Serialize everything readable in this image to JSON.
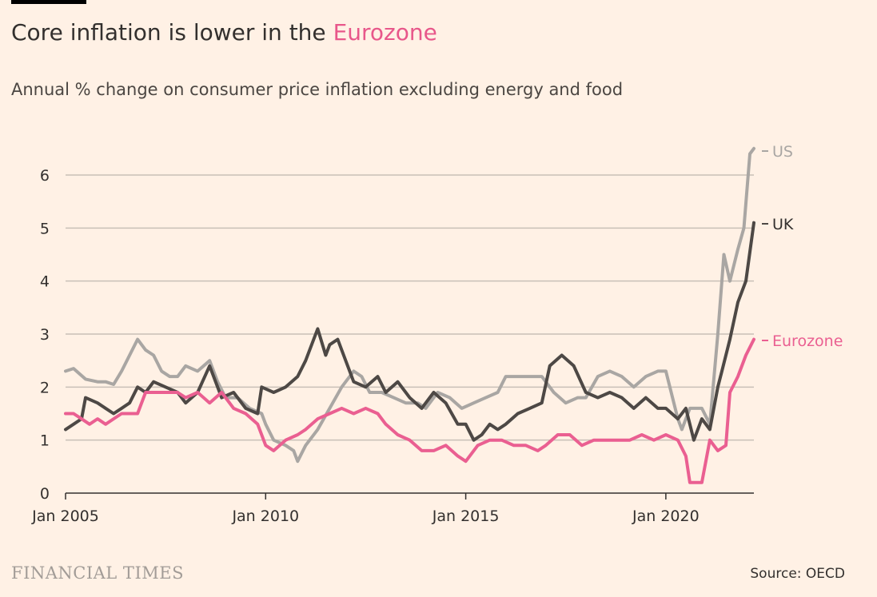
{
  "header": {
    "title_prefix": "Core inflation is lower in the ",
    "title_highlight": "Eurozone",
    "subtitle": "Annual % change on consumer price inflation excluding energy and food"
  },
  "footer": {
    "brand": "FINANCIAL TIMES",
    "source": "Source: OECD"
  },
  "colors": {
    "background": "#fff1e5",
    "us": "#a9a6a3",
    "uk": "#4d4845",
    "eurozone": "#ea5f91",
    "grid": "#c9c0b7",
    "axis": "#33302e"
  },
  "chart_data": {
    "type": "line",
    "title": "Core inflation is lower in the Eurozone",
    "subtitle": "Annual % change on consumer price inflation excluding energy and food",
    "xlim": [
      2005.0,
      2022.2
    ],
    "ylim": [
      0,
      6.5
    ],
    "yticks": [
      0,
      1,
      2,
      3,
      4,
      5,
      6
    ],
    "xticks": [
      {
        "value": 2005,
        "label": "Jan 2005"
      },
      {
        "value": 2010,
        "label": "Jan 2010"
      },
      {
        "value": 2015,
        "label": "Jan 2015"
      },
      {
        "value": 2020,
        "label": "Jan 2020"
      }
    ],
    "grid": true,
    "legend": "direct labels at right end of lines",
    "series": [
      {
        "name": "US",
        "key": "us",
        "points": [
          [
            2005.0,
            2.3
          ],
          [
            2005.2,
            2.35
          ],
          [
            2005.5,
            2.15
          ],
          [
            2005.8,
            2.1
          ],
          [
            2006.0,
            2.1
          ],
          [
            2006.2,
            2.05
          ],
          [
            2006.4,
            2.3
          ],
          [
            2006.6,
            2.6
          ],
          [
            2006.8,
            2.9
          ],
          [
            2007.0,
            2.7
          ],
          [
            2007.2,
            2.6
          ],
          [
            2007.4,
            2.3
          ],
          [
            2007.6,
            2.2
          ],
          [
            2007.8,
            2.2
          ],
          [
            2008.0,
            2.4
          ],
          [
            2008.3,
            2.3
          ],
          [
            2008.6,
            2.5
          ],
          [
            2008.8,
            2.1
          ],
          [
            2009.0,
            1.8
          ],
          [
            2009.3,
            1.8
          ],
          [
            2009.6,
            1.6
          ],
          [
            2009.9,
            1.5
          ],
          [
            2010.0,
            1.3
          ],
          [
            2010.2,
            1.0
          ],
          [
            2010.5,
            0.9
          ],
          [
            2010.7,
            0.8
          ],
          [
            2010.8,
            0.6
          ],
          [
            2011.0,
            0.9
          ],
          [
            2011.3,
            1.2
          ],
          [
            2011.6,
            1.6
          ],
          [
            2011.9,
            2.0
          ],
          [
            2012.2,
            2.3
          ],
          [
            2012.4,
            2.2
          ],
          [
            2012.6,
            1.9
          ],
          [
            2012.9,
            1.9
          ],
          [
            2013.2,
            1.8
          ],
          [
            2013.5,
            1.7
          ],
          [
            2013.8,
            1.7
          ],
          [
            2014.0,
            1.6
          ],
          [
            2014.3,
            1.9
          ],
          [
            2014.6,
            1.8
          ],
          [
            2014.9,
            1.6
          ],
          [
            2015.2,
            1.7
          ],
          [
            2015.5,
            1.8
          ],
          [
            2015.8,
            1.9
          ],
          [
            2016.0,
            2.2
          ],
          [
            2016.3,
            2.2
          ],
          [
            2016.6,
            2.2
          ],
          [
            2016.9,
            2.2
          ],
          [
            2017.2,
            1.9
          ],
          [
            2017.5,
            1.7
          ],
          [
            2017.8,
            1.8
          ],
          [
            2018.0,
            1.8
          ],
          [
            2018.3,
            2.2
          ],
          [
            2018.6,
            2.3
          ],
          [
            2018.9,
            2.2
          ],
          [
            2019.2,
            2.0
          ],
          [
            2019.5,
            2.2
          ],
          [
            2019.8,
            2.3
          ],
          [
            2020.0,
            2.3
          ],
          [
            2020.3,
            1.4
          ],
          [
            2020.4,
            1.2
          ],
          [
            2020.6,
            1.6
          ],
          [
            2020.9,
            1.6
          ],
          [
            2021.1,
            1.3
          ],
          [
            2021.3,
            3.0
          ],
          [
            2021.45,
            4.5
          ],
          [
            2021.6,
            4.0
          ],
          [
            2021.8,
            4.6
          ],
          [
            2021.95,
            5.0
          ],
          [
            2022.1,
            6.4
          ],
          [
            2022.2,
            6.5
          ]
        ]
      },
      {
        "name": "UK",
        "key": "uk",
        "points": [
          [
            2005.0,
            1.2
          ],
          [
            2005.2,
            1.3
          ],
          [
            2005.4,
            1.4
          ],
          [
            2005.5,
            1.8
          ],
          [
            2005.8,
            1.7
          ],
          [
            2006.0,
            1.6
          ],
          [
            2006.2,
            1.5
          ],
          [
            2006.4,
            1.6
          ],
          [
            2006.6,
            1.7
          ],
          [
            2006.8,
            2.0
          ],
          [
            2007.0,
            1.9
          ],
          [
            2007.2,
            2.1
          ],
          [
            2007.5,
            2.0
          ],
          [
            2007.8,
            1.9
          ],
          [
            2008.0,
            1.7
          ],
          [
            2008.3,
            1.9
          ],
          [
            2008.6,
            2.4
          ],
          [
            2008.9,
            1.8
          ],
          [
            2009.2,
            1.9
          ],
          [
            2009.5,
            1.6
          ],
          [
            2009.8,
            1.5
          ],
          [
            2009.9,
            2.0
          ],
          [
            2010.2,
            1.9
          ],
          [
            2010.5,
            2.0
          ],
          [
            2010.8,
            2.2
          ],
          [
            2011.0,
            2.5
          ],
          [
            2011.2,
            2.9
          ],
          [
            2011.3,
            3.1
          ],
          [
            2011.5,
            2.6
          ],
          [
            2011.6,
            2.8
          ],
          [
            2011.8,
            2.9
          ],
          [
            2012.0,
            2.5
          ],
          [
            2012.2,
            2.1
          ],
          [
            2012.5,
            2.0
          ],
          [
            2012.8,
            2.2
          ],
          [
            2013.0,
            1.9
          ],
          [
            2013.3,
            2.1
          ],
          [
            2013.6,
            1.8
          ],
          [
            2013.9,
            1.6
          ],
          [
            2014.2,
            1.9
          ],
          [
            2014.5,
            1.7
          ],
          [
            2014.8,
            1.3
          ],
          [
            2015.0,
            1.3
          ],
          [
            2015.2,
            1.0
          ],
          [
            2015.4,
            1.1
          ],
          [
            2015.6,
            1.3
          ],
          [
            2015.8,
            1.2
          ],
          [
            2016.0,
            1.3
          ],
          [
            2016.3,
            1.5
          ],
          [
            2016.6,
            1.6
          ],
          [
            2016.9,
            1.7
          ],
          [
            2017.1,
            2.4
          ],
          [
            2017.4,
            2.6
          ],
          [
            2017.7,
            2.4
          ],
          [
            2018.0,
            1.9
          ],
          [
            2018.3,
            1.8
          ],
          [
            2018.6,
            1.9
          ],
          [
            2018.9,
            1.8
          ],
          [
            2019.2,
            1.6
          ],
          [
            2019.5,
            1.8
          ],
          [
            2019.8,
            1.6
          ],
          [
            2020.0,
            1.6
          ],
          [
            2020.3,
            1.4
          ],
          [
            2020.5,
            1.6
          ],
          [
            2020.7,
            1.0
          ],
          [
            2020.9,
            1.4
          ],
          [
            2021.1,
            1.2
          ],
          [
            2021.3,
            2.0
          ],
          [
            2021.4,
            2.3
          ],
          [
            2021.6,
            2.9
          ],
          [
            2021.8,
            3.6
          ],
          [
            2022.0,
            4.0
          ],
          [
            2022.2,
            5.1
          ]
        ]
      },
      {
        "name": "Eurozone",
        "key": "eurozone",
        "points": [
          [
            2005.0,
            1.5
          ],
          [
            2005.2,
            1.5
          ],
          [
            2005.4,
            1.4
          ],
          [
            2005.6,
            1.3
          ],
          [
            2005.8,
            1.4
          ],
          [
            2006.0,
            1.3
          ],
          [
            2006.2,
            1.4
          ],
          [
            2006.4,
            1.5
          ],
          [
            2006.6,
            1.5
          ],
          [
            2006.8,
            1.5
          ],
          [
            2007.0,
            1.9
          ],
          [
            2007.2,
            1.9
          ],
          [
            2007.5,
            1.9
          ],
          [
            2007.8,
            1.9
          ],
          [
            2008.0,
            1.8
          ],
          [
            2008.3,
            1.9
          ],
          [
            2008.6,
            1.7
          ],
          [
            2008.9,
            1.9
          ],
          [
            2009.2,
            1.6
          ],
          [
            2009.5,
            1.5
          ],
          [
            2009.8,
            1.3
          ],
          [
            2010.0,
            0.9
          ],
          [
            2010.2,
            0.8
          ],
          [
            2010.5,
            1.0
          ],
          [
            2010.8,
            1.1
          ],
          [
            2011.0,
            1.2
          ],
          [
            2011.3,
            1.4
          ],
          [
            2011.6,
            1.5
          ],
          [
            2011.9,
            1.6
          ],
          [
            2012.2,
            1.5
          ],
          [
            2012.5,
            1.6
          ],
          [
            2012.8,
            1.5
          ],
          [
            2013.0,
            1.3
          ],
          [
            2013.3,
            1.1
          ],
          [
            2013.6,
            1.0
          ],
          [
            2013.9,
            0.8
          ],
          [
            2014.2,
            0.8
          ],
          [
            2014.5,
            0.9
          ],
          [
            2014.8,
            0.7
          ],
          [
            2015.0,
            0.6
          ],
          [
            2015.3,
            0.9
          ],
          [
            2015.6,
            1.0
          ],
          [
            2015.9,
            1.0
          ],
          [
            2016.2,
            0.9
          ],
          [
            2016.5,
            0.9
          ],
          [
            2016.8,
            0.8
          ],
          [
            2017.0,
            0.9
          ],
          [
            2017.3,
            1.1
          ],
          [
            2017.6,
            1.1
          ],
          [
            2017.9,
            0.9
          ],
          [
            2018.2,
            1.0
          ],
          [
            2018.5,
            1.0
          ],
          [
            2018.8,
            1.0
          ],
          [
            2019.1,
            1.0
          ],
          [
            2019.4,
            1.1
          ],
          [
            2019.7,
            1.0
          ],
          [
            2020.0,
            1.1
          ],
          [
            2020.3,
            1.0
          ],
          [
            2020.5,
            0.7
          ],
          [
            2020.6,
            0.2
          ],
          [
            2020.9,
            0.2
          ],
          [
            2021.1,
            1.0
          ],
          [
            2021.3,
            0.8
          ],
          [
            2021.5,
            0.9
          ],
          [
            2021.6,
            1.9
          ],
          [
            2021.8,
            2.2
          ],
          [
            2022.0,
            2.6
          ],
          [
            2022.2,
            2.9
          ]
        ]
      }
    ]
  }
}
